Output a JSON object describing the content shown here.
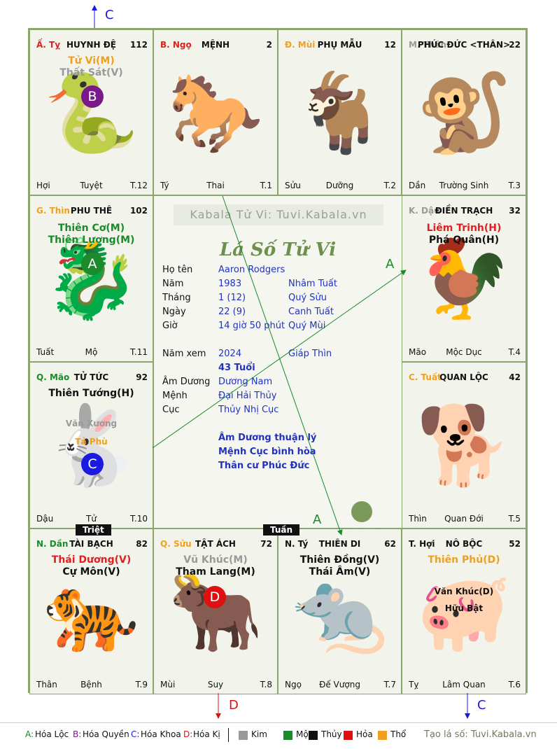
{
  "cells": [
    {
      "can": "Ấ. Tỵ",
      "can_color": "#e02020",
      "name": "HUYNH ĐỆ",
      "num": "112",
      "l": "Hợi",
      "m": "Tuyệt",
      "r": "T.12",
      "stars": [
        {
          "t": "Tử Vi(M)",
          "c": "#f0a020"
        },
        {
          "t": "Thất Sát(V)",
          "c": "#999999"
        }
      ],
      "minors": [],
      "zodiac": "🐍"
    },
    {
      "can": "B. Ngọ",
      "can_color": "#e02020",
      "name": "MỆNH",
      "num": "2",
      "l": "Tý",
      "m": "Thai",
      "r": "T.1",
      "stars": [],
      "minors": [],
      "zodiac": "🐎"
    },
    {
      "can": "Đ. Mùi",
      "can_color": "#f0a020",
      "name": "PHỤ MẪU",
      "num": "12",
      "l": "Sửu",
      "m": "Dưỡng",
      "r": "T.2",
      "stars": [],
      "minors": [],
      "zodiac": "🐐"
    },
    {
      "can": "M. Thân",
      "can_color": "#999999",
      "name": "PHÚC ĐỨC <THÂN>",
      "num": "22",
      "l": "Dần",
      "m": "Trường Sinh",
      "r": "T.3",
      "stars": [],
      "minors": [],
      "zodiac": "🐒"
    },
    {
      "can": "G. Thìn",
      "can_color": "#f0a020",
      "name": "PHU THÊ",
      "num": "102",
      "l": "Tuất",
      "m": "Mộ",
      "r": "T.11",
      "stars": [
        {
          "t": "Thiên Cơ(M)",
          "c": "#1a8a2a"
        },
        {
          "t": "Thiên Lương(M)",
          "c": "#1a8a2a"
        }
      ],
      "minors": [],
      "zodiac": "🐉"
    },
    {
      "can": "K. Dậu",
      "can_color": "#999999",
      "name": "ĐIỀN TRẠCH",
      "num": "32",
      "l": "Mão",
      "m": "Mộc Dục",
      "r": "T.4",
      "stars": [
        {
          "t": "Liêm Trinh(H)",
          "c": "#e02020"
        },
        {
          "t": "Phá Quân(H)",
          "c": "#111111"
        }
      ],
      "minors": [],
      "zodiac": "🐓"
    },
    {
      "can": "Q. Mão",
      "can_color": "#1a8a2a",
      "name": "TỬ TỨC",
      "num": "92",
      "l": "Dậu",
      "m": "Tử",
      "r": "T.10",
      "stars": [
        {
          "t": "Thiên Tướng(H)",
          "c": "#111111"
        }
      ],
      "minors": [
        {
          "t": "Văn Xương",
          "c": "#999999"
        },
        {
          "t": "Tả Phù",
          "c": "#f0a020"
        }
      ],
      "zodiac": "🐇"
    },
    {
      "can": "C. Tuất",
      "can_color": "#f0a020",
      "name": "QUAN LỘC",
      "num": "42",
      "l": "Thìn",
      "m": "Quan Đới",
      "r": "T.5",
      "stars": [],
      "minors": [],
      "zodiac": "🐕"
    },
    {
      "can": "N. Dần",
      "can_color": "#1a8a2a",
      "name": "TÀI BẠCH",
      "num": "82",
      "l": "Thân",
      "m": "Bệnh",
      "r": "T.9",
      "stars": [
        {
          "t": "Thái Dương(V)",
          "c": "#e02020"
        },
        {
          "t": "Cự Môn(V)",
          "c": "#111111"
        }
      ],
      "minors": [],
      "zodiac": "🐅"
    },
    {
      "can": "Q. Sửu",
      "can_color": "#f0a020",
      "name": "TẬT ÁCH",
      "num": "72",
      "l": "Mùi",
      "m": "Suy",
      "r": "T.8",
      "stars": [
        {
          "t": "Vũ Khúc(M)",
          "c": "#999999"
        },
        {
          "t": "Tham Lang(M)",
          "c": "#111111"
        }
      ],
      "minors": [],
      "zodiac": "🐂"
    },
    {
      "can": "N. Tý",
      "can_color": "#111111",
      "name": "THIÊN DI",
      "num": "62",
      "l": "Ngọ",
      "m": "Đế Vượng",
      "r": "T.7",
      "stars": [
        {
          "t": "Thiên Đồng(V)",
          "c": "#111111"
        },
        {
          "t": "Thái Âm(V)",
          "c": "#111111"
        }
      ],
      "minors": [],
      "zodiac": "🐀"
    },
    {
      "can": "T. Hợi",
      "can_color": "#111111",
      "name": "NÔ BỘC",
      "num": "52",
      "l": "Tỵ",
      "m": "Lâm Quan",
      "r": "T.6",
      "stars": [
        {
          "t": "Thiên Phủ(D)",
          "c": "#f0a020"
        }
      ],
      "minors": [
        {
          "t": "Văn Khúc(D)",
          "c": "#111111"
        },
        {
          "t": "Hữu Bật",
          "c": "#111111"
        }
      ],
      "zodiac": "🐖"
    }
  ],
  "badges": [
    {
      "cell": 0,
      "letter": "B",
      "color": "#7a1a8a"
    },
    {
      "cell": 4,
      "letter": "A",
      "color": "#1a8a2a"
    },
    {
      "cell": 6,
      "letter": "C",
      "color": "#1a1ae0"
    },
    {
      "cell": 9,
      "letter": "D",
      "color": "#e01010"
    }
  ],
  "tags": {
    "triet": "Triệt",
    "tuan": "Tuần"
  },
  "center": {
    "watermark": "Kabala Tử Vi: Tuvi.Kabala.vn",
    "title": "Lá Số Tử Vi",
    "rows": [
      {
        "label": "Họ tên",
        "v1": "Aaron Rodgers",
        "v2": ""
      },
      {
        "label": "Năm",
        "v1": "1983",
        "v2": "Nhâm Tuất"
      },
      {
        "label": "Tháng",
        "v1": "1  (12)",
        "v2": "Quý Sửu"
      },
      {
        "label": "Ngày",
        "v1": "22  (9)",
        "v2": "Canh Tuất"
      },
      {
        "label": "Giờ",
        "v1": "14 giờ 50 phút",
        "v2": "Quý Mùi"
      },
      {
        "label": "Năm xem",
        "v1": "2024",
        "v2": "Giáp Thìn"
      },
      {
        "label": "",
        "v1": "43 Tuổi",
        "v2": ""
      },
      {
        "label": "Âm Dương",
        "v1": "Dương Nam",
        "v2": ""
      },
      {
        "label": "Mệnh",
        "v1": "Đại Hải Thủy",
        "v2": ""
      },
      {
        "label": "Cục",
        "v1": "Thủy Nhị Cục",
        "v2": ""
      }
    ],
    "notes": [
      "Âm Dương thuận lý",
      "Mệnh Cục bình hòa",
      "Thân cư Phúc Đức"
    ],
    "logo": "Kabala"
  },
  "arrows": {
    "c_top": "C",
    "a_mid": "A",
    "a_low": "A",
    "d_bottom": "D",
    "c_bottom": "C"
  },
  "legend": {
    "items": [
      {
        "k": "A:",
        "v": "Hóa Lộc",
        "c": "#1a8a2a"
      },
      {
        "k": "B:",
        "v": "Hóa Quyền",
        "c": "#7a1a8a"
      },
      {
        "k": "C:",
        "v": "Hóa Khoa",
        "c": "#1a1ae0"
      },
      {
        "k": "D:",
        "v": "Hóa Kị",
        "c": "#e01010"
      }
    ],
    "elements": [
      {
        "v": "Kim",
        "c": "#999999"
      },
      {
        "v": "Mộc",
        "c": "#1a8a2a"
      },
      {
        "v": "Thủy",
        "c": "#111111"
      },
      {
        "v": "Hỏa",
        "c": "#e01010"
      },
      {
        "v": "Thổ",
        "c": "#f0a020"
      }
    ],
    "credit": "Tạo lá số: Tuvi.Kabala.vn"
  }
}
